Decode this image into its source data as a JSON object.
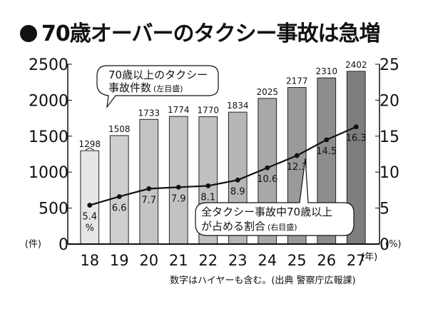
{
  "title": "70歳オーバーのタクシー事故は急増",
  "source_note": "数字はハイヤーも含む。(出典 警察庁広報課)",
  "units": {
    "left": "(件)",
    "right": "(%)",
    "x": "(年)"
  },
  "callouts": {
    "bars": {
      "line1": "70歳以上のタクシー",
      "line2": "事故件数",
      "line2_small": "(左目盛)"
    },
    "line": {
      "line1": "全タクシー事故中70歳以上",
      "line2": "が占める割合",
      "line2_small": "(右目盛)"
    }
  },
  "chart_data": {
    "type": "bar",
    "categories": [
      "18",
      "19",
      "20",
      "21",
      "22",
      "23",
      "24",
      "25",
      "26",
      "27"
    ],
    "series": [
      {
        "name": "70歳以上のタクシー事故件数(左目盛)",
        "type": "bar",
        "axis": "left",
        "values": [
          1298,
          1508,
          1733,
          1774,
          1770,
          1834,
          2025,
          2177,
          2310,
          2402
        ]
      },
      {
        "name": "全タクシー事故中70歳以上が占める割合(右目盛)",
        "type": "line",
        "axis": "right",
        "values": [
          5.4,
          6.6,
          7.7,
          7.9,
          8.1,
          8.9,
          10.6,
          12.3,
          14.5,
          16.3
        ]
      }
    ],
    "first_pct_unit": "%",
    "ylim_left": [
      0,
      2500
    ],
    "ylim_right": [
      0,
      25
    ],
    "yticks_left": [
      "0",
      "500",
      "1000",
      "1500",
      "2000",
      "2500"
    ],
    "yticks_right": [
      "0",
      "5",
      "10",
      "15",
      "20",
      "25"
    ],
    "grid": false,
    "colors": {
      "bar_gradient": [
        "#e6e6e6",
        "#cfcfcf",
        "#c4c4c4",
        "#c2c2c2",
        "#c0c0c0",
        "#b6b6b6",
        "#a8a8a8",
        "#9a9a9a",
        "#8d8d8d",
        "#7e7e7e"
      ],
      "bar_stroke": "#222222",
      "line": "#111111"
    }
  }
}
